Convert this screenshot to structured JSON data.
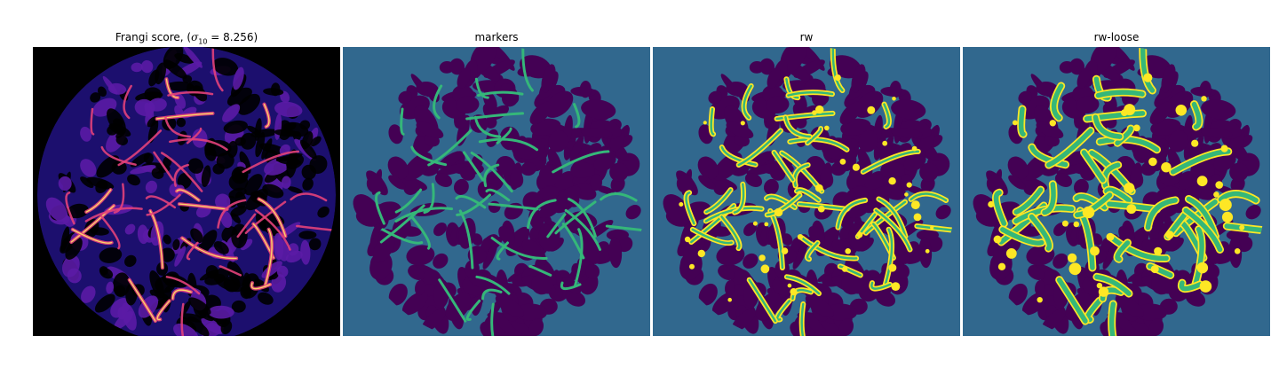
{
  "figure": {
    "panels": [
      {
        "id": "frangi",
        "title": "Frangi score, (",
        "title_math_symbol": "σ",
        "title_math_sub": "10",
        "title_math_rest": " = 8.256)",
        "colormap": "magma",
        "colors": {
          "background": "#000000",
          "low": "#1c0f6e",
          "mid": "#5b1ba5",
          "high": "#e3417a",
          "peak": "#fcd36a"
        }
      },
      {
        "id": "markers",
        "title": "markers",
        "colors": {
          "background": "#31688e",
          "foreground": "#440154",
          "marker": "#35b779"
        }
      },
      {
        "id": "rw",
        "title": "rw",
        "colors": {
          "background": "#31688e",
          "foreground": "#440154",
          "vessel": "#35b779",
          "edge": "#fde725"
        }
      },
      {
        "id": "rw-loose",
        "title": "rw-loose",
        "colors": {
          "background": "#31688e",
          "foreground": "#440154",
          "vessel": "#35b779",
          "edge": "#fde725"
        }
      }
    ]
  }
}
